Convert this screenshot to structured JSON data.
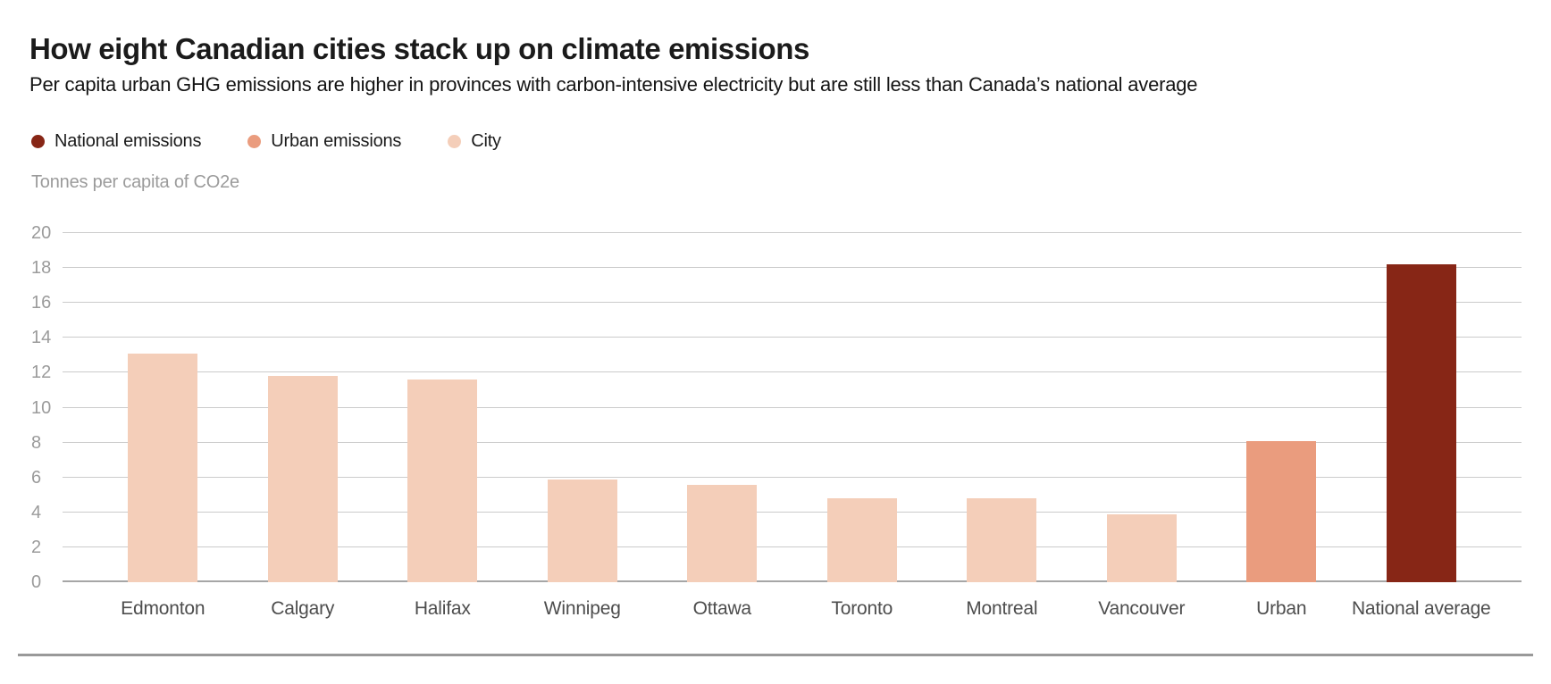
{
  "header": {
    "title": "How eight Canadian cities stack up on climate emissions",
    "subtitle": "Per capita urban GHG emissions are higher in provinces with carbon-intensive electricity but are still less than Canada’s national average"
  },
  "legend": {
    "items": [
      {
        "label": "National emissions",
        "color": "#872616"
      },
      {
        "label": "Urban emissions",
        "color": "#EA9C7E"
      },
      {
        "label": "City",
        "color": "#F4CEB9"
      }
    ]
  },
  "chart_data": {
    "type": "bar",
    "title": "How eight Canadian cities stack up on climate emissions",
    "ylabel": "Tonnes per capita of CO2e",
    "xlabel": "",
    "ylim": [
      0,
      20
    ],
    "yticks": [
      0,
      2,
      4,
      6,
      8,
      10,
      12,
      14,
      16,
      18,
      20
    ],
    "grid": true,
    "legend_position": "top-left",
    "categories": [
      "Edmonton",
      "Calgary",
      "Halifax",
      "Winnipeg",
      "Ottawa",
      "Toronto",
      "Montreal",
      "Vancouver",
      "Urban",
      "National average"
    ],
    "values": [
      13.1,
      11.8,
      11.6,
      5.9,
      5.6,
      4.8,
      4.8,
      3.9,
      8.1,
      18.2
    ],
    "bar_series": [
      "City",
      "City",
      "City",
      "City",
      "City",
      "City",
      "City",
      "City",
      "Urban emissions",
      "National emissions"
    ],
    "series_colors": {
      "National emissions": "#872616",
      "Urban emissions": "#EA9C7E",
      "City": "#F4CEB9"
    }
  },
  "colors": {
    "gridline": "#cbcbcb",
    "zero_line": "#a6a6a6",
    "footer_rule": "#999999",
    "tick_text": "#9b9b9b",
    "category_text": "#4d4d4d"
  }
}
